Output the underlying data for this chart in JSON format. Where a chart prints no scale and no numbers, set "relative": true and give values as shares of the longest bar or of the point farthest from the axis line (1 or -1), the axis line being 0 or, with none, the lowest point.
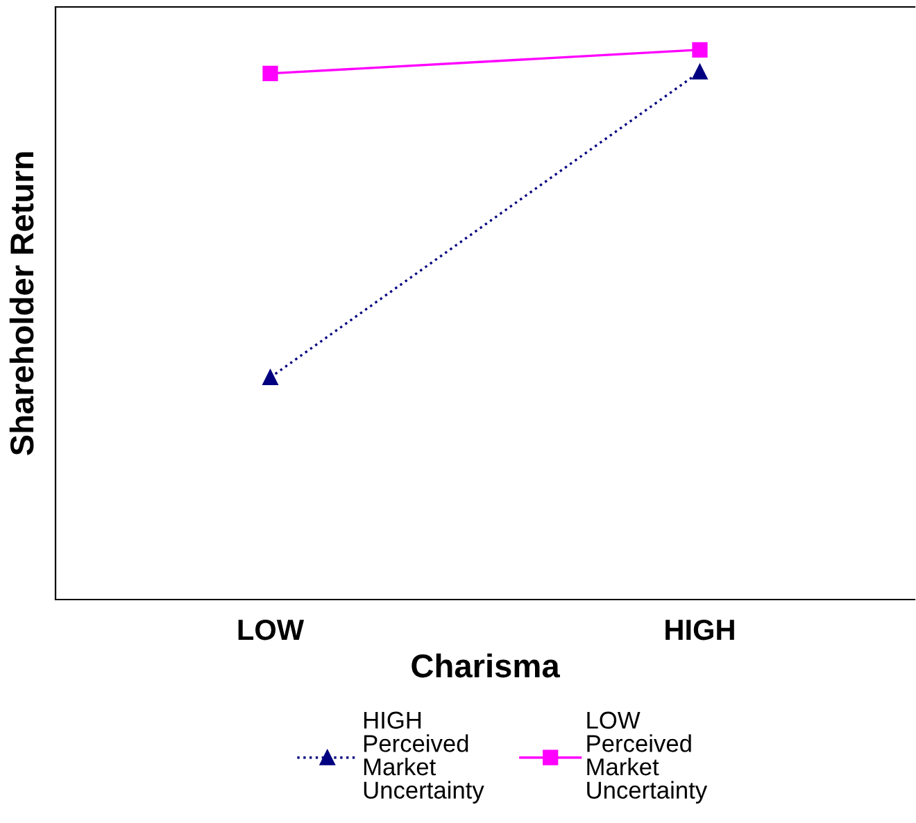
{
  "chart_data": {
    "type": "line",
    "xlabel": "Charisma",
    "ylabel": "Shareholder Return",
    "categories": [
      "LOW",
      "HIGH"
    ],
    "relative": true,
    "legend": "bottom",
    "grid": false,
    "series": [
      {
        "name": "HIGH Perceived Market Uncertainty",
        "color": "#000080",
        "values": [
          0.404,
          0.96
        ],
        "marker": "triangle",
        "line_style": "dotted"
      },
      {
        "name": "LOW Perceived Market Uncertainty",
        "color": "#ff00ff",
        "values": [
          0.957,
          1
        ],
        "marker": "square",
        "line_style": "solid"
      }
    ]
  }
}
